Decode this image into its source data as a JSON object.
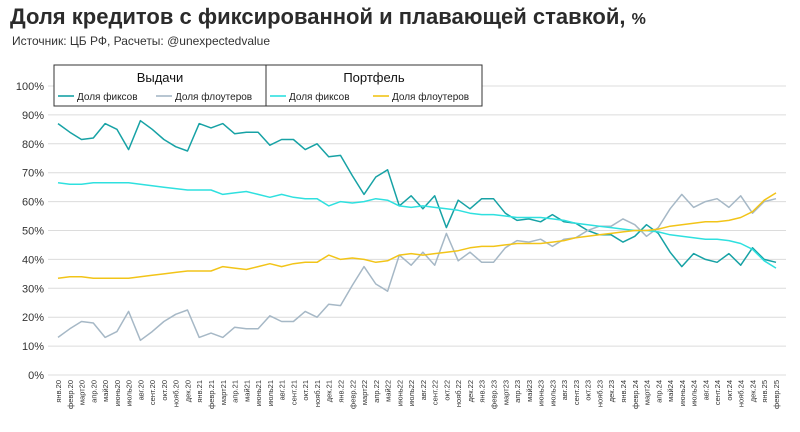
{
  "header": {
    "title": "Доля кредитов с фиксированной и плавающей ставкой,",
    "title_unit": "%",
    "subtitle": "Источник: ЦБ РФ, Расчеты: @unexpectedvalue"
  },
  "legend": {
    "groups": [
      {
        "heading": "Выдачи",
        "entries": [
          "Доля фиксов",
          "Доля флоутеров"
        ]
      },
      {
        "heading": "Портфель",
        "entries": [
          "Доля фиксов",
          "Доля флоутеров"
        ]
      }
    ]
  },
  "colors": {
    "issuance_fixed": "#17a2a5",
    "issuance_float": "#a6b8c6",
    "portfolio_fixed": "#2fe0df",
    "portfolio_float": "#f2c418",
    "grid": "#dcdcdc"
  },
  "chart_data": {
    "type": "line",
    "title": "Доля кредитов с фиксированной и плавающей ставкой, %",
    "ylim": [
      0,
      100
    ],
    "yticks": [
      "0%",
      "10%",
      "20%",
      "30%",
      "40%",
      "50%",
      "60%",
      "70%",
      "80%",
      "90%",
      "100%"
    ],
    "grid": true,
    "legend_position": "top-left",
    "categories": [
      "янв.20",
      "февр.20",
      "март20",
      "апр.20",
      "май20",
      "июнь20",
      "июль20",
      "авг.20",
      "сент.20",
      "окт.20",
      "нояб.20",
      "дек.20",
      "янв.21",
      "февр.21",
      "март21",
      "апр.21",
      "май21",
      "июнь21",
      "июль21",
      "авг.21",
      "сент.21",
      "окт.21",
      "нояб.21",
      "дек.21",
      "янв.22",
      "февр.22",
      "март22",
      "апр.22",
      "май22",
      "июнь22",
      "июль22",
      "авг.22",
      "сент.22",
      "окт.22",
      "нояб.22",
      "дек.22",
      "янв.23",
      "февр.23",
      "март23",
      "апр.23",
      "май23",
      "июнь23",
      "июль23",
      "авг.23",
      "сент.23",
      "окт.23",
      "нояб.23",
      "дек.23",
      "янв.24",
      "февр.24",
      "март24",
      "апр.24",
      "май24",
      "июнь24",
      "июль24",
      "авг.24",
      "сент.24",
      "окт.24",
      "нояб.24",
      "дек.24",
      "янв.25",
      "февр.25"
    ],
    "series": [
      {
        "group": "Выдачи",
        "name": "Доля фиксов",
        "color_key": "issuance_fixed",
        "values": [
          87,
          84,
          81.5,
          82,
          87,
          85,
          78,
          88,
          85,
          81.5,
          79,
          77.5,
          87,
          85.5,
          87,
          83.5,
          84,
          84,
          79.5,
          81.5,
          81.5,
          78,
          80,
          75.5,
          76,
          69,
          62.5,
          68.5,
          71,
          58.5,
          62,
          57.5,
          62,
          51,
          60.5,
          57.5,
          61,
          61,
          56,
          53.5,
          54,
          53,
          55.5,
          53,
          52.5,
          50,
          48.5,
          48.5,
          46,
          48,
          52,
          49,
          42.5,
          37.5,
          42,
          40,
          39,
          42,
          38,
          44,
          40,
          39
        ]
      },
      {
        "group": "Выдачи",
        "name": "Доля флоутеров",
        "color_key": "issuance_float",
        "values": [
          13,
          16,
          18.5,
          18,
          13,
          15,
          22,
          12,
          15,
          18.5,
          21,
          22.5,
          13,
          14.5,
          13,
          16.5,
          16,
          16,
          20.5,
          18.5,
          18.5,
          22,
          20,
          24.5,
          24,
          31,
          37.5,
          31.5,
          29,
          41.5,
          38,
          42.5,
          38,
          49,
          39.5,
          42.5,
          39,
          39,
          44,
          46.5,
          46,
          47,
          44.5,
          47,
          47.5,
          50,
          51.5,
          51.5,
          54,
          52,
          48,
          51,
          57.5,
          62.5,
          58,
          60,
          61,
          58,
          62,
          56,
          60,
          61
        ]
      },
      {
        "group": "Портфель",
        "name": "Доля фиксов",
        "color_key": "portfolio_fixed",
        "values": [
          66.5,
          66,
          66,
          66.5,
          66.5,
          66.5,
          66.5,
          66,
          65.5,
          65,
          64.5,
          64,
          64,
          64,
          62.5,
          63,
          63.5,
          62.5,
          61.5,
          62.5,
          61.5,
          61,
          61,
          58.5,
          60,
          59.5,
          60,
          61,
          60.5,
          58.5,
          58,
          58.5,
          58,
          57.5,
          57,
          56,
          55.5,
          55.5,
          55,
          54.5,
          54.5,
          54.5,
          54,
          53.5,
          52.5,
          52,
          51.5,
          51,
          50.5,
          50,
          50,
          49.5,
          48.5,
          48,
          47.5,
          47,
          47,
          46.5,
          45.5,
          43.5,
          39.5,
          37
        ]
      },
      {
        "group": "Портфель",
        "name": "Доля флоутеров",
        "color_key": "portfolio_float",
        "values": [
          33.5,
          34,
          34,
          33.5,
          33.5,
          33.5,
          33.5,
          34,
          34.5,
          35,
          35.5,
          36,
          36,
          36,
          37.5,
          37,
          36.5,
          37.5,
          38.5,
          37.5,
          38.5,
          39,
          39,
          41.5,
          40,
          40.5,
          40,
          39,
          39.5,
          41.5,
          42,
          41.5,
          42,
          42.5,
          43,
          44,
          44.5,
          44.5,
          45,
          45.5,
          45.5,
          45.5,
          46,
          46.5,
          47.5,
          48,
          48.5,
          49,
          49.5,
          50,
          50,
          50.5,
          51.5,
          52,
          52.5,
          53,
          53,
          53.5,
          54.5,
          56.5,
          60.5,
          63
        ]
      }
    ]
  }
}
